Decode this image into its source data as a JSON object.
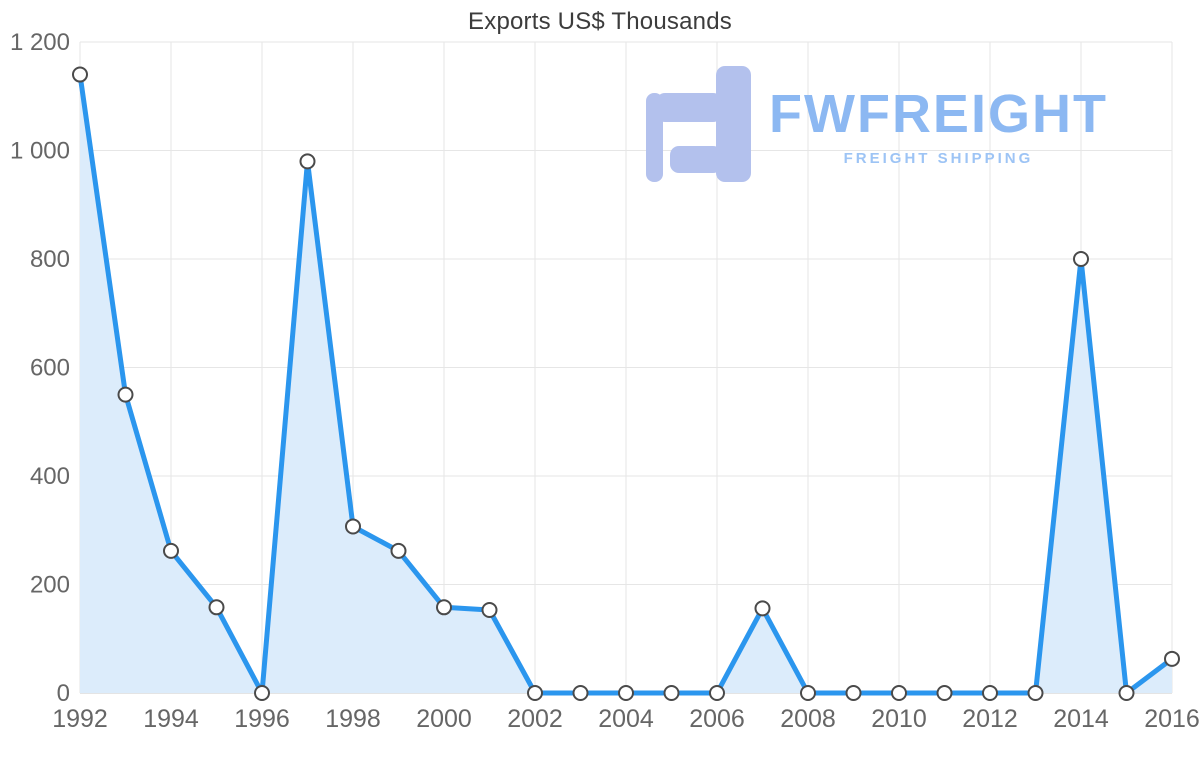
{
  "watermark": {
    "brand": "FWFREIGHT",
    "tagline": "FREIGHT SHIPPING",
    "colors": {
      "icon": "#b3c1ed",
      "brand": "#8cb8f2",
      "tagline": "#9dc4f5"
    }
  },
  "chart_data": {
    "type": "area",
    "title": "Exports US$ Thousands",
    "x": [
      1992,
      1993,
      1994,
      1995,
      1996,
      1997,
      1998,
      1999,
      2000,
      2001,
      2002,
      2003,
      2004,
      2005,
      2006,
      2007,
      2008,
      2009,
      2010,
      2011,
      2012,
      2013,
      2014,
      2015,
      2016
    ],
    "values": [
      1140,
      550,
      262,
      158,
      0,
      980,
      307,
      262,
      158,
      153,
      0,
      0,
      0,
      0,
      0,
      156,
      0,
      0,
      0,
      0,
      0,
      0,
      800,
      0,
      63
    ],
    "xlabel": "",
    "ylabel": "",
    "ylim": [
      0,
      1200
    ],
    "ytick_interval": 200,
    "ytick_labels": [
      "0",
      "200",
      "400",
      "600",
      "800",
      "1 000",
      "1 200"
    ],
    "xticks": [
      1992,
      1994,
      1996,
      1998,
      2000,
      2002,
      2004,
      2006,
      2008,
      2010,
      2012,
      2014,
      2016
    ],
    "xtick_labels": [
      "1992",
      "1994",
      "1996",
      "1998",
      "2000",
      "2002",
      "2004",
      "2006",
      "2008",
      "2010",
      "2012",
      "2014",
      "2016"
    ],
    "grid": true,
    "legend": "none",
    "colors": {
      "line": "#2b96ee",
      "area": "#dcecfb",
      "marker_fill": "#ffffff",
      "marker_stroke": "#4a4a4a",
      "grid": "#e6e6e6",
      "axis_line": "#c9c9c9",
      "axis_text": "#666666",
      "title_text": "#3c3c3c"
    }
  }
}
